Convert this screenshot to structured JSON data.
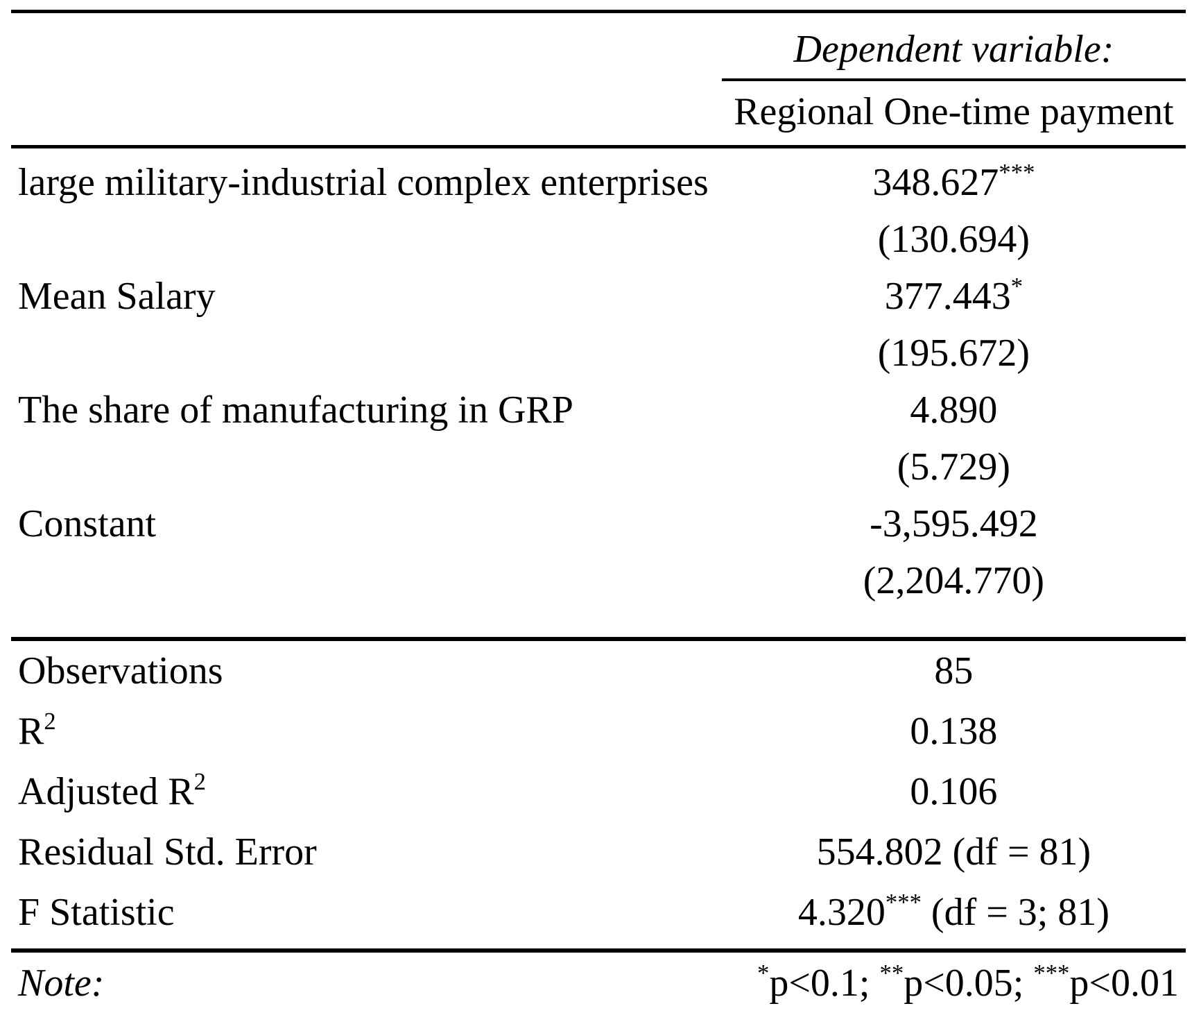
{
  "table": {
    "header": {
      "dependent_variable_label": "Dependent variable:",
      "dependent_variable_name": "Regional One-time payment"
    },
    "coefficients": [
      {
        "label": "large military-industrial complex enterprises",
        "estimate": "348.627",
        "stars": "***",
        "std_error": "(130.694)"
      },
      {
        "label": "Mean Salary",
        "estimate": "377.443",
        "stars": "*",
        "std_error": "(195.672)"
      },
      {
        "label": "The share of manufacturing in GRP",
        "estimate": "4.890",
        "stars": "",
        "std_error": "(5.729)"
      },
      {
        "label": "Constant",
        "estimate": "-3,595.492",
        "stars": "",
        "std_error": "(2,204.770)"
      }
    ],
    "statistics": [
      {
        "label": "Observations",
        "value": "85"
      },
      {
        "label": "R",
        "label_superscript": "2",
        "value": "0.138"
      },
      {
        "label": "Adjusted R",
        "label_superscript": "2",
        "value": "0.106"
      },
      {
        "label": "Residual Std. Error",
        "value": "554.802 (df = 81)"
      },
      {
        "label": "F Statistic",
        "value": "4.320",
        "value_stars": "***",
        "value_suffix": " (df = 3; 81)"
      }
    ],
    "note": {
      "label": "Note:",
      "legend": [
        {
          "stars": "*",
          "text": "p<0.1; "
        },
        {
          "stars": "**",
          "text": "p<0.05; "
        },
        {
          "stars": "***",
          "text": "p<0.01"
        }
      ]
    }
  }
}
